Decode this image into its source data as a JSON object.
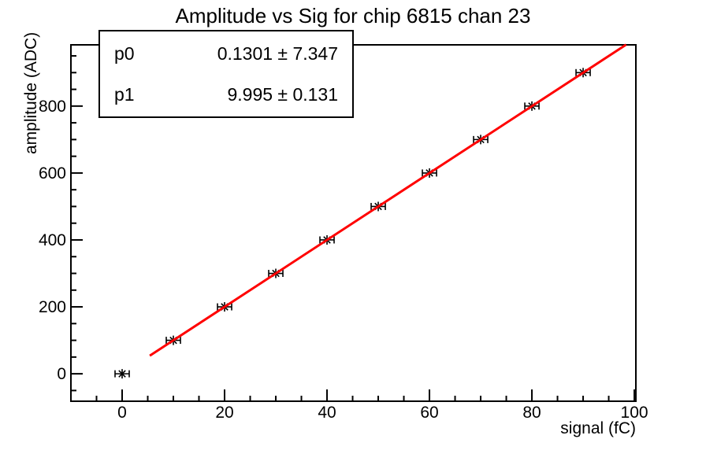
{
  "title": "Amplitude vs Sig for chip 6815 chan 23",
  "stats_box": {
    "rows": [
      {
        "label": "p0",
        "value": "0.1301 ± 7.347"
      },
      {
        "label": "p1",
        "value": "9.995 ± 0.131"
      }
    ]
  },
  "chart_data": {
    "type": "scatter",
    "title": "Amplitude vs Sig for chip 6815 chan 23",
    "xlabel": "signal (fC)",
    "ylabel": "amplitude (ADC)",
    "points": [
      [
        0,
        0
      ],
      [
        10,
        100
      ],
      [
        20,
        200
      ],
      [
        30,
        300
      ],
      [
        40,
        400
      ],
      [
        50,
        500
      ],
      [
        60,
        600
      ],
      [
        70,
        700
      ],
      [
        80,
        800
      ],
      [
        90,
        900
      ]
    ],
    "marker": "asterisk-with-x-error-caps",
    "marker_color": "#000000",
    "xlim": [
      -10,
      100.3
    ],
    "ylim": [
      -82,
      983
    ],
    "x_ticks": [
      0,
      20,
      40,
      60,
      80,
      100
    ],
    "y_ticks": [
      0,
      200,
      400,
      600,
      800
    ],
    "x_minor_tick_step": 5,
    "y_minor_tick_step": 50,
    "grid": false,
    "legend": "none (fit parameter box top-left)",
    "fit": {
      "type": "linear",
      "p0": 0.1301,
      "p1": 9.995,
      "x_range": [
        5.4,
        98.4
      ],
      "color": "#ff0000"
    },
    "axis_color": "#000000",
    "background": "#ffffff"
  }
}
